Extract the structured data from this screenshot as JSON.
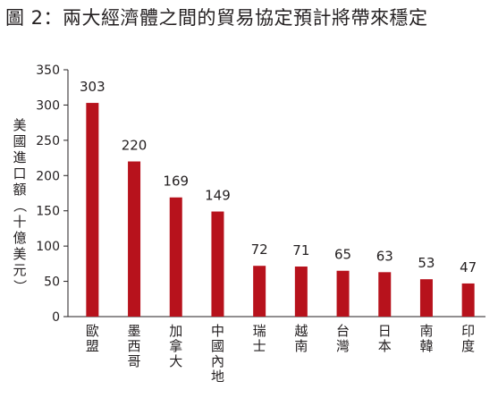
{
  "title": "圖 2：兩大經濟體之間的貿易協定預計將帶來穩定",
  "chart_data": {
    "type": "bar",
    "ylabel": "美國進口額（十億美元）",
    "xlabel": "",
    "ylim": [
      0,
      350
    ],
    "yticks": [
      0,
      50,
      100,
      150,
      200,
      250,
      300,
      350
    ],
    "grid": false,
    "legend": "none",
    "bar_color": "#b7121c",
    "categories": [
      "歐盟",
      "墨西哥",
      "加拿大",
      "中國內地",
      "瑞士",
      "越南",
      "台灣",
      "日本",
      "南韓",
      "印度"
    ],
    "values": [
      303,
      220,
      169,
      149,
      72,
      71,
      65,
      63,
      53,
      47
    ]
  }
}
